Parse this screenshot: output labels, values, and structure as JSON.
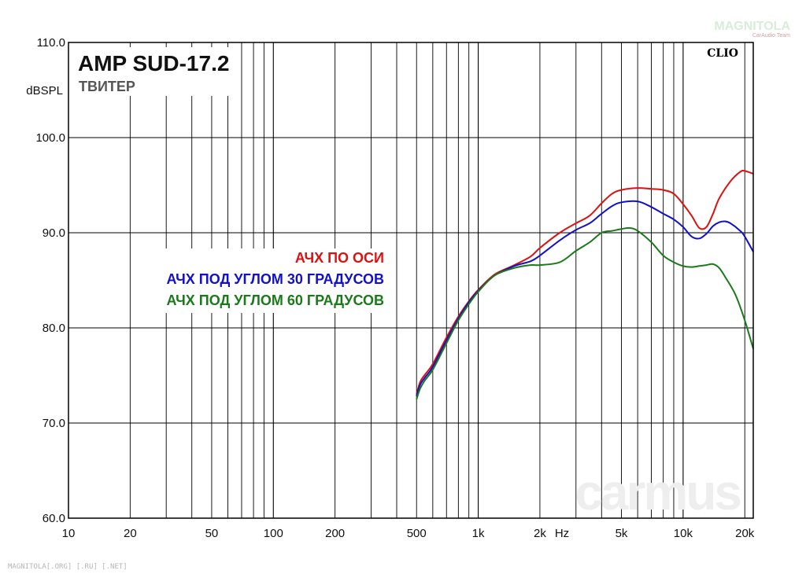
{
  "header": {
    "title": "AMP SUD-17.2",
    "subtitle": "ТВИТЕР",
    "analyzer": "CLIO"
  },
  "watermarks": {
    "logo": "MAGNITOLA",
    "logo_sub": "CarAudio Team",
    "footer": "MAGNITOLA[.ORG] [.RU] [.NET]",
    "carmus": "carmus"
  },
  "chart_data": {
    "type": "line",
    "title": "AMP SUD-17.2",
    "subtitle": "ТВИТЕР",
    "xlabel": "Hz",
    "ylabel": "dBSPL",
    "xscale": "log",
    "xlim": [
      10,
      22000
    ],
    "ylim": [
      60,
      110
    ],
    "y_ticks": [
      60,
      70,
      80,
      90,
      100,
      110
    ],
    "y_tick_labels": [
      "60.0",
      "70.0",
      "80.0",
      "90.0",
      "100.0",
      "110.0"
    ],
    "x_ticks": [
      10,
      20,
      50,
      100,
      200,
      500,
      1000,
      2000,
      5000,
      10000,
      20000
    ],
    "x_tick_labels": [
      "10",
      "20",
      "50",
      "100",
      "200",
      "500",
      "1k",
      "2k",
      "5k",
      "10k",
      "20k"
    ],
    "grid": true,
    "legend_position": "center-left",
    "series": [
      {
        "name": "АЧХ ПО ОСИ",
        "color": "#dd1111",
        "points": [
          [
            500,
            73.0
          ],
          [
            520,
            74.3
          ],
          [
            550,
            75.1
          ],
          [
            600,
            76.2
          ],
          [
            700,
            79.0
          ],
          [
            800,
            81.2
          ],
          [
            900,
            82.8
          ],
          [
            1000,
            84.0
          ],
          [
            1200,
            85.6
          ],
          [
            1500,
            86.6
          ],
          [
            1800,
            87.5
          ],
          [
            2000,
            88.4
          ],
          [
            2500,
            90.0
          ],
          [
            3000,
            91.0
          ],
          [
            3500,
            91.8
          ],
          [
            4000,
            93.1
          ],
          [
            4500,
            94.1
          ],
          [
            5000,
            94.5
          ],
          [
            6000,
            94.7
          ],
          [
            7000,
            94.6
          ],
          [
            8000,
            94.5
          ],
          [
            9000,
            94.1
          ],
          [
            10000,
            93.0
          ],
          [
            11000,
            91.8
          ],
          [
            12000,
            90.5
          ],
          [
            13000,
            90.6
          ],
          [
            14000,
            92.0
          ],
          [
            15000,
            93.6
          ],
          [
            17000,
            95.4
          ],
          [
            19000,
            96.4
          ],
          [
            20000,
            96.5
          ],
          [
            22000,
            96.2
          ]
        ]
      },
      {
        "name": "АЧХ ПОД УГЛОМ 30 ГРАДУСОВ",
        "color": "#1111cc",
        "points": [
          [
            500,
            72.8
          ],
          [
            520,
            74.0
          ],
          [
            550,
            74.8
          ],
          [
            600,
            75.9
          ],
          [
            700,
            78.7
          ],
          [
            800,
            81.0
          ],
          [
            900,
            82.7
          ],
          [
            1000,
            83.9
          ],
          [
            1200,
            85.5
          ],
          [
            1500,
            86.5
          ],
          [
            1800,
            87.0
          ],
          [
            2000,
            87.6
          ],
          [
            2500,
            89.2
          ],
          [
            3000,
            90.3
          ],
          [
            3500,
            91.0
          ],
          [
            4000,
            92.0
          ],
          [
            4500,
            92.8
          ],
          [
            5000,
            93.2
          ],
          [
            6000,
            93.3
          ],
          [
            7000,
            92.7
          ],
          [
            8000,
            92.0
          ],
          [
            9000,
            91.4
          ],
          [
            10000,
            90.6
          ],
          [
            11000,
            89.6
          ],
          [
            12000,
            89.4
          ],
          [
            13000,
            89.9
          ],
          [
            14000,
            90.7
          ],
          [
            15000,
            91.1
          ],
          [
            16000,
            91.2
          ],
          [
            17000,
            91.0
          ],
          [
            19000,
            90.2
          ],
          [
            20000,
            89.6
          ],
          [
            22000,
            88.0
          ]
        ]
      },
      {
        "name": "АЧХ ПОД УГЛОМ 60 ГРАДУСОВ",
        "color": "#1a7a1a",
        "points": [
          [
            500,
            72.5
          ],
          [
            520,
            73.6
          ],
          [
            550,
            74.5
          ],
          [
            600,
            75.6
          ],
          [
            700,
            78.4
          ],
          [
            800,
            80.8
          ],
          [
            900,
            82.5
          ],
          [
            1000,
            83.8
          ],
          [
            1200,
            85.5
          ],
          [
            1500,
            86.3
          ],
          [
            1800,
            86.6
          ],
          [
            2000,
            86.6
          ],
          [
            2500,
            86.9
          ],
          [
            3000,
            88.1
          ],
          [
            3500,
            89.0
          ],
          [
            4000,
            90.0
          ],
          [
            4500,
            90.2
          ],
          [
            5000,
            90.4
          ],
          [
            5500,
            90.5
          ],
          [
            6000,
            90.2
          ],
          [
            7000,
            89.0
          ],
          [
            8000,
            87.6
          ],
          [
            9000,
            86.9
          ],
          [
            10000,
            86.5
          ],
          [
            11000,
            86.4
          ],
          [
            12000,
            86.5
          ],
          [
            13000,
            86.6
          ],
          [
            14000,
            86.7
          ],
          [
            15000,
            86.3
          ],
          [
            16000,
            85.4
          ],
          [
            18000,
            83.5
          ],
          [
            20000,
            80.8
          ],
          [
            22000,
            77.8
          ]
        ]
      }
    ]
  }
}
